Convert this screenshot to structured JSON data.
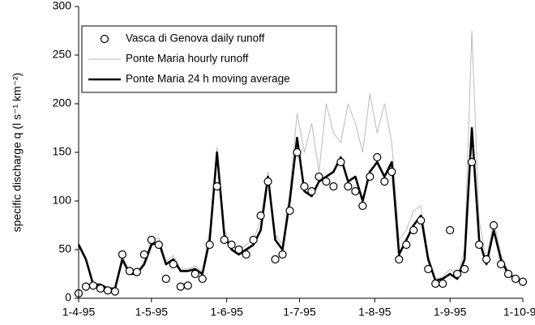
{
  "chart_data": {
    "type": "line",
    "y_label": "specific discharge q (l s⁻¹ km⁻²)",
    "x": [
      "1995-04-01",
      "1995-04-04",
      "1995-04-07",
      "1995-04-10",
      "1995-04-13",
      "1995-04-16",
      "1995-04-19",
      "1995-04-22",
      "1995-04-25",
      "1995-04-28",
      "1995-05-01",
      "1995-05-04",
      "1995-05-07",
      "1995-05-10",
      "1995-05-13",
      "1995-05-16",
      "1995-05-19",
      "1995-05-22",
      "1995-05-25",
      "1995-05-28",
      "1995-05-31",
      "1995-06-03",
      "1995-06-06",
      "1995-06-09",
      "1995-06-12",
      "1995-06-15",
      "1995-06-18",
      "1995-06-21",
      "1995-06-24",
      "1995-06-27",
      "1995-06-30",
      "1995-07-03",
      "1995-07-06",
      "1995-07-09",
      "1995-07-12",
      "1995-07-15",
      "1995-07-18",
      "1995-07-21",
      "1995-07-24",
      "1995-07-27",
      "1995-07-30",
      "1995-08-02",
      "1995-08-05",
      "1995-08-08",
      "1995-08-11",
      "1995-08-14",
      "1995-08-17",
      "1995-08-20",
      "1995-08-23",
      "1995-08-26",
      "1995-08-29",
      "1995-09-01",
      "1995-09-04",
      "1995-09-07",
      "1995-09-10",
      "1995-09-13",
      "1995-09-16",
      "1995-09-19",
      "1995-09-22",
      "1995-09-25",
      "1995-09-28",
      "1995-10-01"
    ],
    "series": [
      {
        "name": "Vasca di Genova daily runoff",
        "style": "markers",
        "color": "#000000",
        "values": [
          5,
          12,
          13,
          10,
          8,
          7,
          45,
          28,
          27,
          45,
          60,
          55,
          20,
          35,
          12,
          13,
          25,
          20,
          55,
          115,
          60,
          55,
          50,
          45,
          60,
          85,
          120,
          40,
          45,
          90,
          150,
          115,
          110,
          125,
          120,
          115,
          140,
          115,
          110,
          95,
          125,
          145,
          120,
          130,
          40,
          55,
          70,
          80,
          30,
          15,
          15,
          70,
          25,
          30,
          140,
          55,
          40,
          75,
          35,
          25,
          20,
          17
        ]
      },
      {
        "name": "Ponte Maria hourly runoff",
        "style": "thin",
        "color": "#bbbbbb",
        "values": [
          57,
          42,
          15,
          15,
          11,
          11,
          45,
          27,
          27,
          38,
          60,
          62,
          38,
          44,
          30,
          30,
          33,
          28,
          70,
          155,
          70,
          55,
          48,
          55,
          60,
          80,
          130,
          65,
          55,
          110,
          190,
          150,
          180,
          130,
          200,
          170,
          160,
          200,
          180,
          150,
          210,
          170,
          200,
          160,
          60,
          70,
          90,
          95,
          45,
          20,
          22,
          30,
          22,
          50,
          275,
          80,
          40,
          80,
          45,
          28,
          22,
          18
        ]
      },
      {
        "name": "Ponte Maria 24 h moving average",
        "style": "thick",
        "color": "#000000",
        "values": [
          55,
          40,
          14,
          14,
          10,
          10,
          40,
          25,
          25,
          35,
          55,
          58,
          35,
          40,
          28,
          28,
          30,
          25,
          60,
          150,
          65,
          50,
          45,
          50,
          55,
          70,
          125,
          60,
          50,
          100,
          165,
          110,
          105,
          120,
          125,
          130,
          145,
          120,
          125,
          100,
          130,
          140,
          125,
          140,
          45,
          60,
          75,
          85,
          40,
          18,
          20,
          25,
          20,
          40,
          175,
          60,
          35,
          70,
          40,
          25,
          20,
          17
        ]
      }
    ],
    "xlim": [
      "1995-04-01",
      "1995-10-01"
    ],
    "xticks": [
      {
        "value": "1995-04-01",
        "label": "1-4-95"
      },
      {
        "value": "1995-05-01",
        "label": "1-5-95"
      },
      {
        "value": "1995-06-01",
        "label": "1-6-95"
      },
      {
        "value": "1995-07-01",
        "label": "1-7-95"
      },
      {
        "value": "1995-08-01",
        "label": "1-8-95"
      },
      {
        "value": "1995-09-01",
        "label": "1-9-95"
      },
      {
        "value": "1995-10-01",
        "label": "1-10-95"
      }
    ],
    "ylim": [
      0,
      300
    ],
    "yticks": [
      0,
      50,
      100,
      150,
      200,
      250,
      300
    ],
    "legend": "upper-left"
  }
}
